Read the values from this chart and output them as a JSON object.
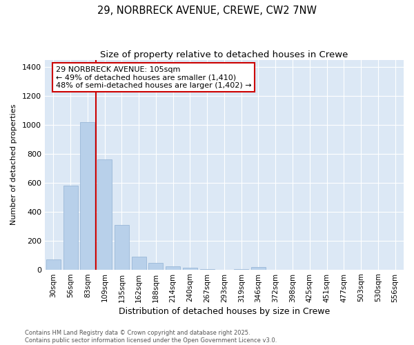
{
  "title_line1": "29, NORBRECK AVENUE, CREWE, CW2 7NW",
  "title_line2": "Size of property relative to detached houses in Crewe",
  "xlabel": "Distribution of detached houses by size in Crewe",
  "ylabel": "Number of detached properties",
  "categories": [
    "30sqm",
    "56sqm",
    "83sqm",
    "109sqm",
    "135sqm",
    "162sqm",
    "188sqm",
    "214sqm",
    "240sqm",
    "267sqm",
    "293sqm",
    "319sqm",
    "346sqm",
    "372sqm",
    "398sqm",
    "425sqm",
    "451sqm",
    "477sqm",
    "503sqm",
    "530sqm",
    "556sqm"
  ],
  "values": [
    70,
    580,
    1020,
    760,
    310,
    90,
    45,
    20,
    10,
    5,
    0,
    5,
    15,
    0,
    0,
    0,
    0,
    0,
    0,
    0,
    0
  ],
  "bar_color": "#b8d0ea",
  "bar_edgecolor": "#9ab8d8",
  "redline_color": "#cc0000",
  "annotation_text": "29 NORBRECK AVENUE: 105sqm\n← 49% of detached houses are smaller (1,410)\n48% of semi-detached houses are larger (1,402) →",
  "annotation_boxcolor": "white",
  "annotation_edgecolor": "#cc0000",
  "ylim": [
    0,
    1450
  ],
  "yticks": [
    0,
    200,
    400,
    600,
    800,
    1000,
    1200,
    1400
  ],
  "background_color": "#dce8f5",
  "footnote": "Contains HM Land Registry data © Crown copyright and database right 2025.\nContains public sector information licensed under the Open Government Licence v3.0.",
  "title_fontsize": 10.5,
  "subtitle_fontsize": 9.5,
  "xlabel_fontsize": 9,
  "ylabel_fontsize": 8,
  "annotation_fontsize": 8,
  "tick_fontsize": 7.5,
  "footnote_fontsize": 6
}
